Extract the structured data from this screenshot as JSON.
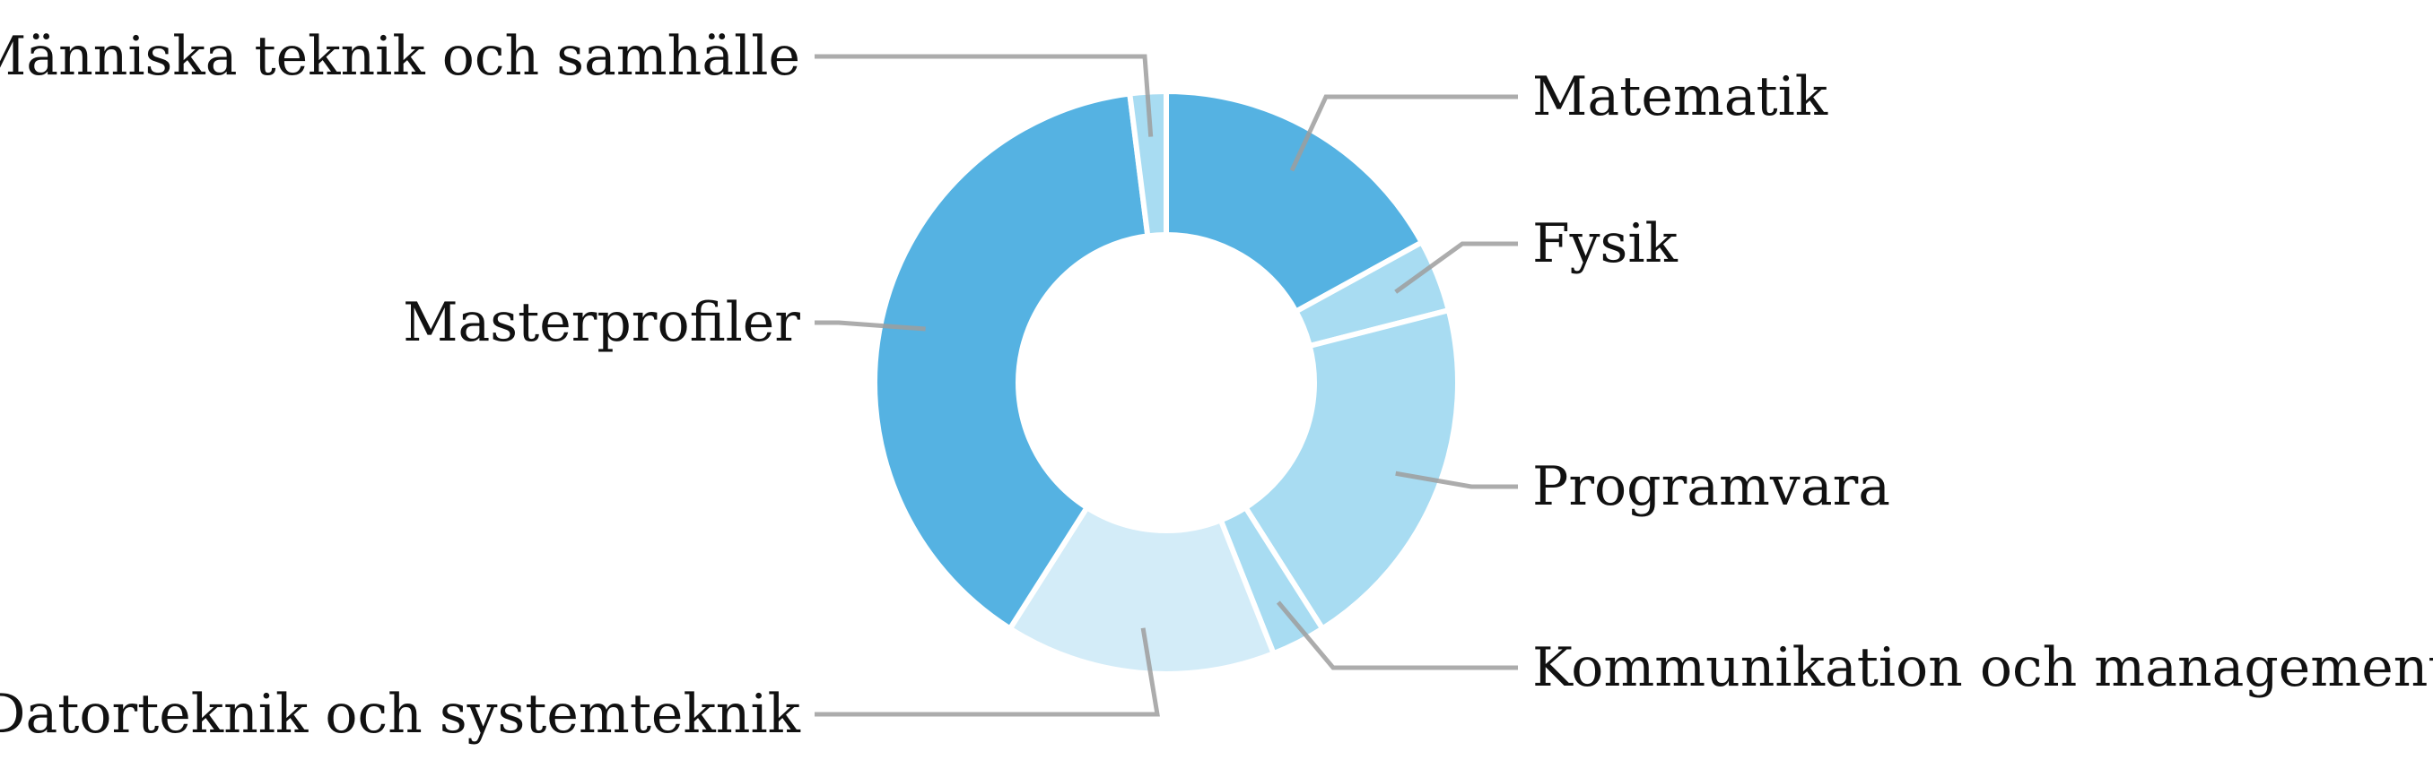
{
  "chart_data": {
    "type": "pie",
    "donut": true,
    "title": "",
    "legend": "none",
    "slices": [
      {
        "label": "Matematik",
        "value": 17.0,
        "color": "#55b2e2"
      },
      {
        "label": "Fysik",
        "value": 4.0,
        "color": "#a8dcf2"
      },
      {
        "label": "Programvara",
        "value": 20.0,
        "color": "#a8dcf2"
      },
      {
        "label": "Kommunikation och management",
        "value": 3.0,
        "color": "#a8dcf2"
      },
      {
        "label": "Datorteknik och systemteknik",
        "value": 15.0,
        "color": "#d3ecf8"
      },
      {
        "label": "Masterprofiler",
        "value": 39.0,
        "color": "#55b2e2"
      },
      {
        "label": "Människa teknik och samhälle",
        "value": 2.0,
        "color": "#a8dcf2"
      }
    ]
  }
}
